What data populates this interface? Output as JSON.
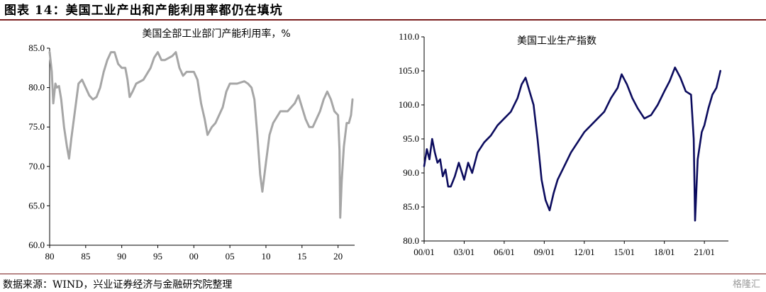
{
  "figure": {
    "title": "图表 14：美国工业产出和产能利用率都仍在填坑",
    "source": "数据来源：WIND，兴业证券经济与金融研究院整理",
    "watermark": "格隆汇"
  },
  "chart_data": [
    {
      "type": "line",
      "title": "美国全部工业部门产能利用率，%",
      "color": "#a6a6a6",
      "xlim": [
        1980,
        2022.3
      ],
      "ylim": [
        60,
        85
      ],
      "yticks": [
        "60.0",
        "65.0",
        "70.0",
        "75.0",
        "80.0",
        "85.0"
      ],
      "ytick_values": [
        60,
        65,
        70,
        75,
        80,
        85
      ],
      "xticks": [
        "80",
        "85",
        "90",
        "95",
        "00",
        "05",
        "10",
        "15",
        "20"
      ],
      "xtick_values": [
        1980,
        1985,
        1990,
        1995,
        2000,
        2005,
        2010,
        2015,
        2020
      ],
      "grid": false,
      "x": [
        1980.0,
        1980.3,
        1980.5,
        1980.8,
        1981.0,
        1981.3,
        1981.6,
        1982.0,
        1982.4,
        1982.7,
        1983.0,
        1983.5,
        1984.0,
        1984.5,
        1985.0,
        1985.5,
        1986.0,
        1986.5,
        1987.0,
        1987.5,
        1988.0,
        1988.5,
        1989.0,
        1989.5,
        1990.0,
        1990.5,
        1990.8,
        1991.1,
        1991.5,
        1992.0,
        1993.0,
        1994.0,
        1994.5,
        1995.0,
        1995.5,
        1996.0,
        1997.0,
        1997.5,
        1998.0,
        1998.5,
        1999.0,
        2000.0,
        2000.5,
        2001.0,
        2001.5,
        2001.9,
        2002.5,
        2003.0,
        2003.5,
        2004.0,
        2004.5,
        2005.0,
        2005.5,
        2006.0,
        2007.0,
        2007.5,
        2008.0,
        2008.4,
        2008.8,
        2009.2,
        2009.5,
        2010.0,
        2010.5,
        2011.0,
        2012.0,
        2013.0,
        2014.0,
        2014.5,
        2015.0,
        2015.5,
        2016.0,
        2016.5,
        2017.0,
        2017.5,
        2018.0,
        2018.5,
        2019.0,
        2019.5,
        2020.0,
        2020.2,
        2020.3,
        2020.5,
        2020.8,
        2021.0,
        2021.2,
        2021.5,
        2021.8,
        2022.0
      ],
      "y": [
        84.5,
        82.0,
        78.0,
        80.5,
        80.0,
        80.2,
        78.5,
        75.0,
        72.5,
        71.0,
        73.5,
        77.0,
        80.5,
        81.0,
        80.0,
        79.0,
        78.5,
        78.8,
        80.0,
        82.0,
        83.5,
        84.5,
        84.5,
        83.0,
        82.5,
        82.5,
        81.0,
        78.8,
        79.5,
        80.5,
        81.0,
        82.5,
        83.8,
        84.5,
        83.5,
        83.5,
        84.0,
        84.5,
        82.5,
        81.5,
        82.0,
        82.0,
        81.0,
        78.0,
        76.0,
        74.0,
        75.0,
        75.5,
        76.5,
        77.5,
        79.5,
        80.5,
        80.5,
        80.5,
        80.8,
        80.5,
        80.0,
        78.5,
        74.0,
        69.0,
        66.8,
        70.5,
        74.0,
        75.5,
        77.0,
        77.0,
        78.0,
        79.0,
        77.5,
        76.0,
        75.0,
        75.0,
        76.0,
        77.0,
        78.5,
        79.5,
        78.5,
        77.0,
        76.5,
        72.0,
        63.5,
        68.0,
        72.5,
        74.0,
        75.5,
        75.5,
        76.5,
        78.5
      ]
    },
    {
      "type": "line",
      "title": "美国工业生产指数",
      "color": "#0c0c5e",
      "xlim": [
        2000.0,
        2022.8
      ],
      "ylim": [
        80,
        110
      ],
      "yticks": [
        "80.0",
        "85.0",
        "90.0",
        "95.0",
        "100.0",
        "105.0",
        "110.0"
      ],
      "ytick_values": [
        80,
        85,
        90,
        95,
        100,
        105,
        110
      ],
      "xticks": [
        "00/01",
        "03/01",
        "06/01",
        "09/01",
        "12/01",
        "15/01",
        "18/01",
        "21/01"
      ],
      "xtick_values": [
        2000.0,
        2003.0,
        2006.0,
        2009.0,
        2012.0,
        2015.0,
        2018.0,
        2021.0
      ],
      "grid": false,
      "x": [
        2000.0,
        2000.2,
        2000.4,
        2000.6,
        2000.8,
        2001.0,
        2001.2,
        2001.4,
        2001.6,
        2001.8,
        2002.0,
        2002.3,
        2002.6,
        2003.0,
        2003.3,
        2003.6,
        2004.0,
        2004.5,
        2005.0,
        2005.5,
        2006.0,
        2006.5,
        2007.0,
        2007.3,
        2007.6,
        2007.9,
        2008.2,
        2008.5,
        2008.8,
        2009.1,
        2009.4,
        2009.7,
        2010.0,
        2010.5,
        2011.0,
        2011.5,
        2012.0,
        2012.5,
        2013.0,
        2013.5,
        2014.0,
        2014.5,
        2014.8,
        2015.2,
        2015.6,
        2016.0,
        2016.5,
        2017.0,
        2017.5,
        2018.0,
        2018.4,
        2018.8,
        2019.2,
        2019.6,
        2020.0,
        2020.2,
        2020.3,
        2020.5,
        2020.8,
        2021.0,
        2021.3,
        2021.6,
        2021.9,
        2022.2
      ],
      "y": [
        91.0,
        93.5,
        92.0,
        95.0,
        93.0,
        91.5,
        92.0,
        89.5,
        90.5,
        88.0,
        88.0,
        89.5,
        91.5,
        89.0,
        91.5,
        90.0,
        93.0,
        94.5,
        95.5,
        97.0,
        98.0,
        99.0,
        101.0,
        103.0,
        104.0,
        102.0,
        100.0,
        95.0,
        89.0,
        86.0,
        84.5,
        87.0,
        89.0,
        91.0,
        93.0,
        94.5,
        96.0,
        97.0,
        98.0,
        99.0,
        101.0,
        102.5,
        104.5,
        103.0,
        101.0,
        99.5,
        98.0,
        98.5,
        100.0,
        102.0,
        103.5,
        105.5,
        104.0,
        102.0,
        101.5,
        95.0,
        83.0,
        92.0,
        96.0,
        97.0,
        99.5,
        101.5,
        102.5,
        105.0
      ]
    }
  ]
}
